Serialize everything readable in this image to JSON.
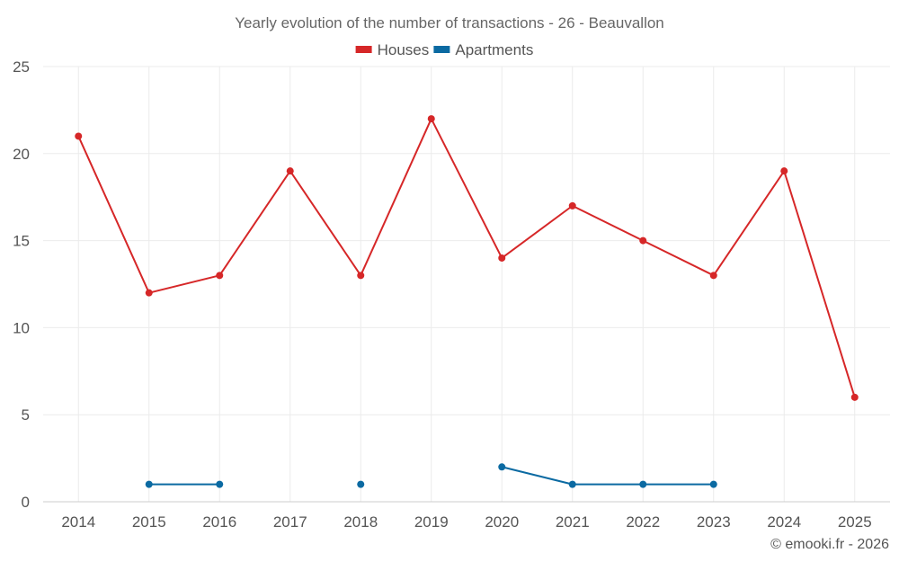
{
  "chart_data": {
    "type": "line",
    "title": "Yearly evolution of the number of transactions - 26 - Beauvallon",
    "categories": [
      "2014",
      "2015",
      "2016",
      "2017",
      "2018",
      "2019",
      "2020",
      "2021",
      "2022",
      "2023",
      "2024",
      "2025"
    ],
    "series": [
      {
        "name": "Houses",
        "color": "#d62728",
        "values": [
          21,
          12,
          13,
          19,
          13,
          22,
          14,
          17,
          15,
          13,
          19,
          6
        ]
      },
      {
        "name": "Apartments",
        "color": "#0b6aa2",
        "values": [
          null,
          1,
          1,
          null,
          1,
          null,
          2,
          1,
          1,
          1,
          null,
          null
        ]
      }
    ],
    "ylim": [
      0,
      25
    ],
    "yticks": [
      0,
      5,
      10,
      15,
      20,
      25
    ],
    "xlabel": "",
    "ylabel": "",
    "grid": true,
    "legend": "top-center"
  },
  "credit": "© emooki.fr - 2026"
}
